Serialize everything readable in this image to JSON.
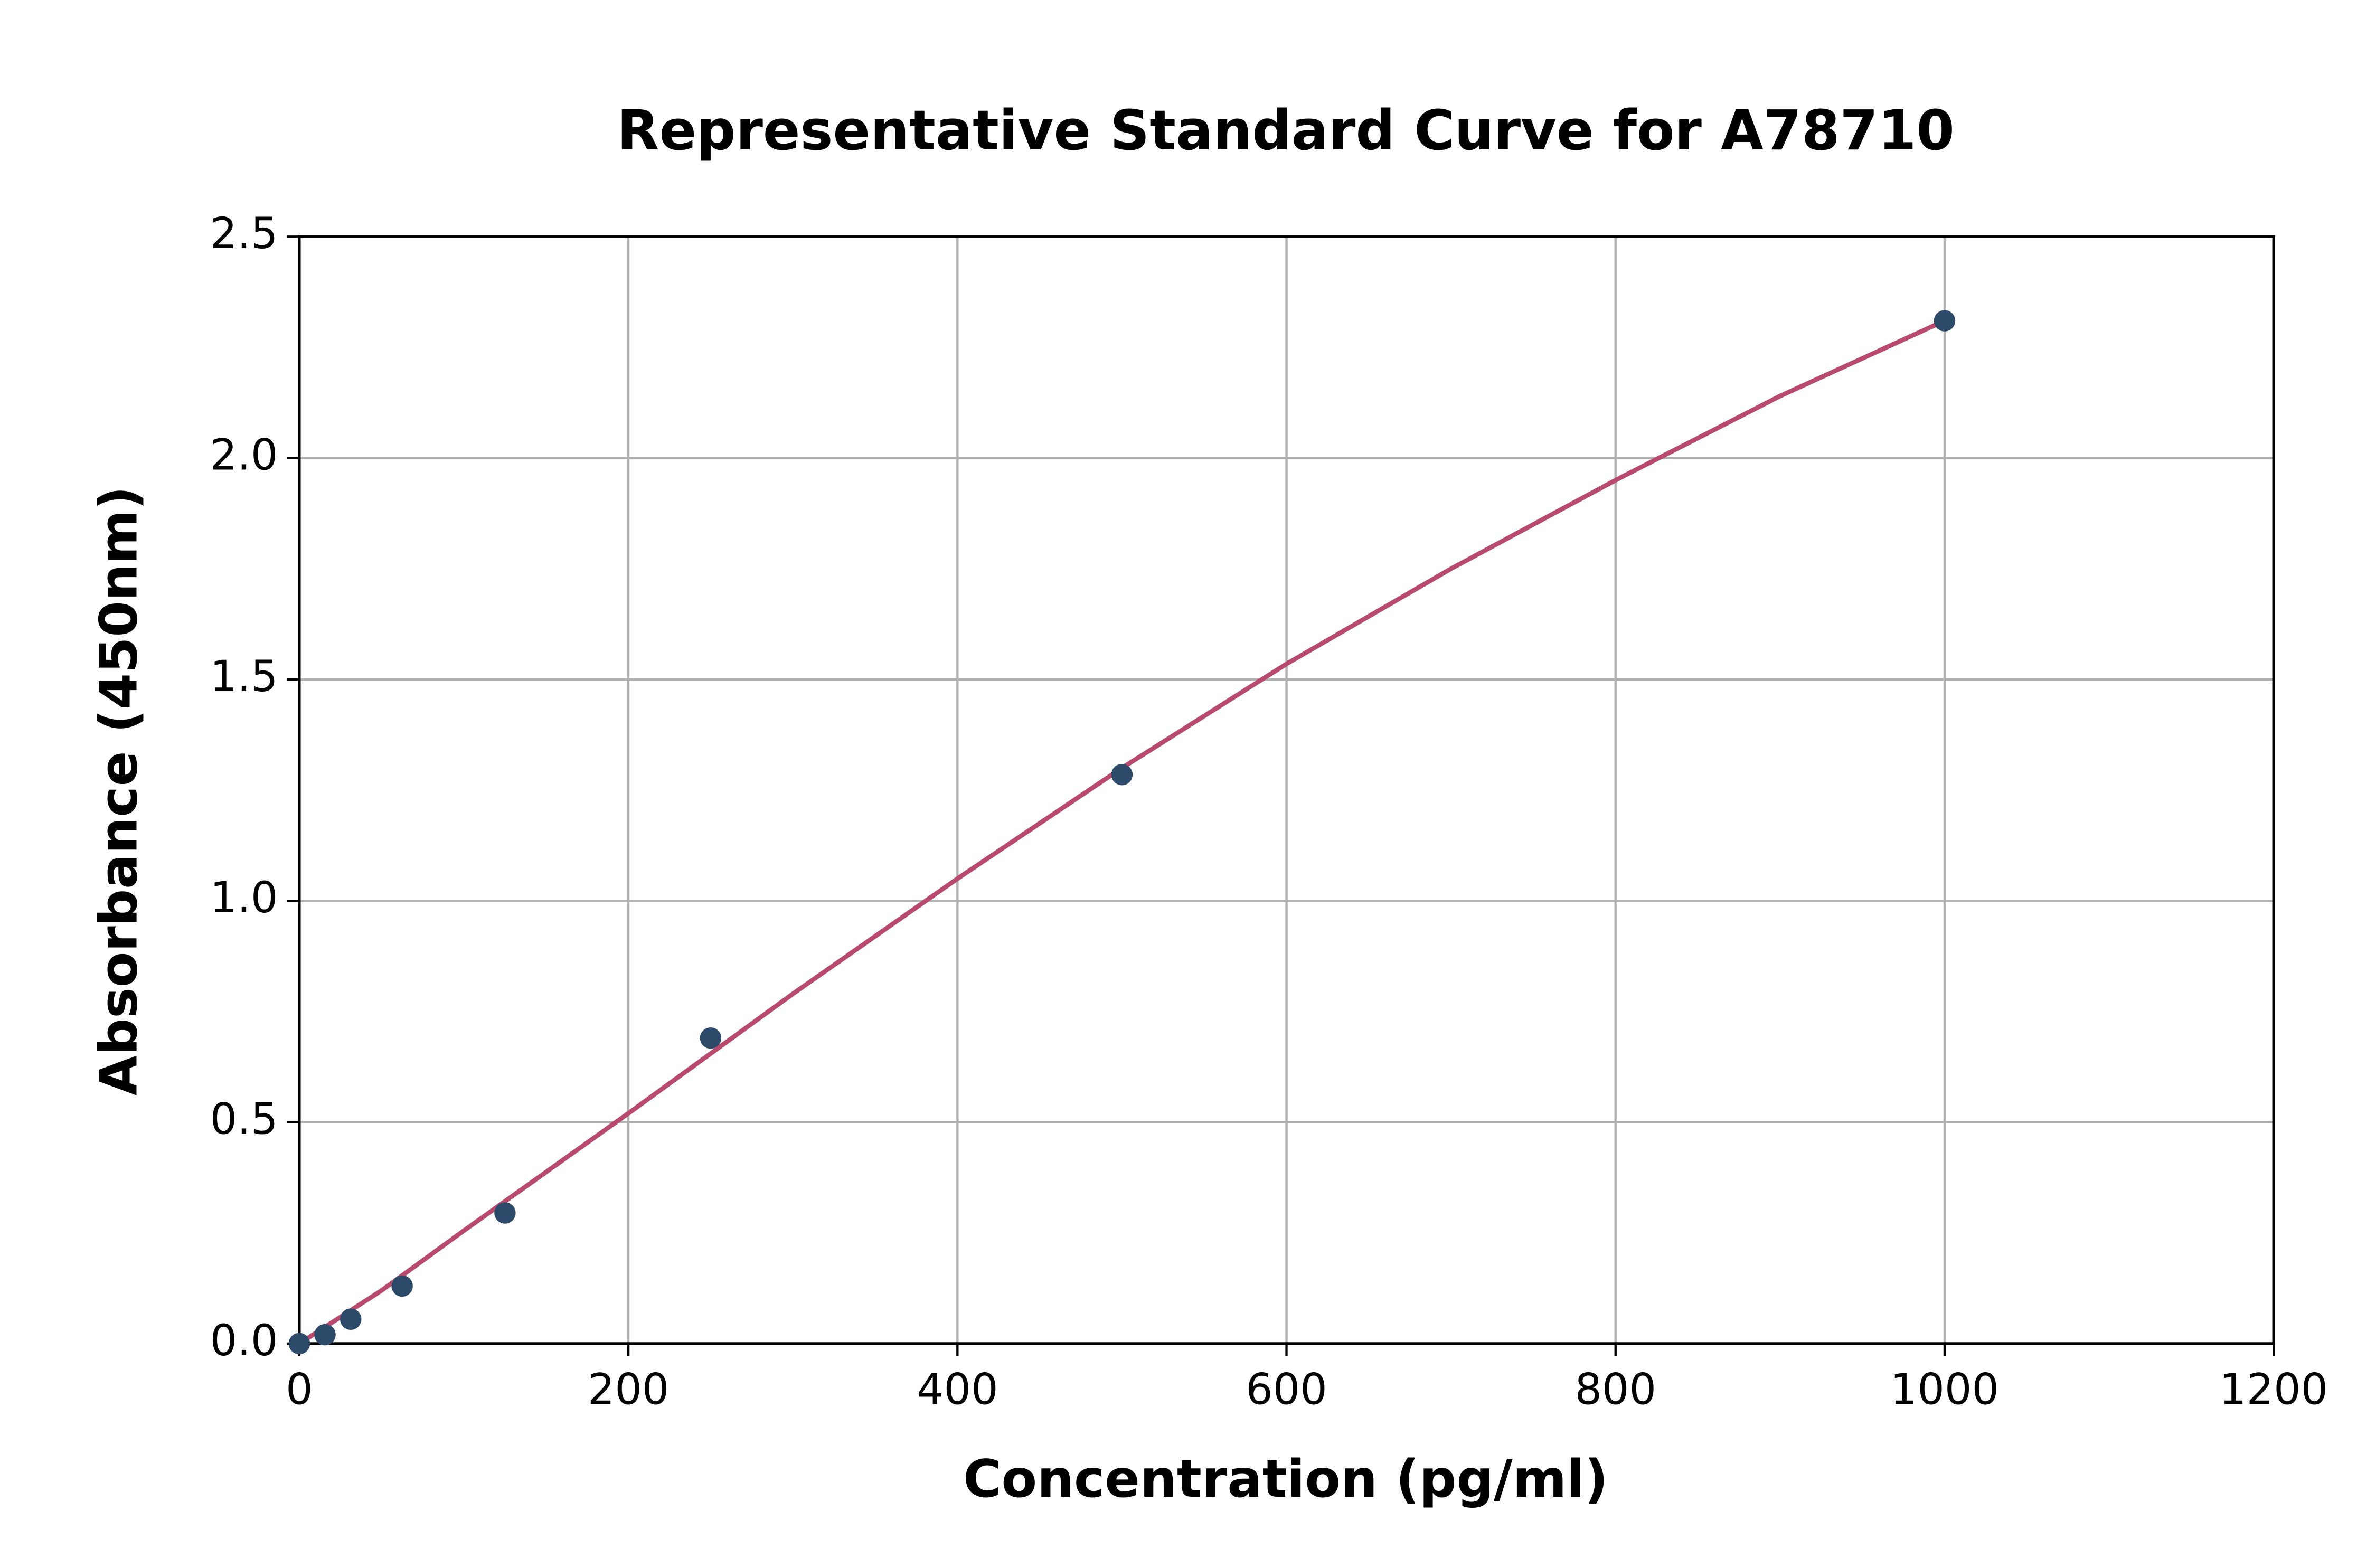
{
  "chart_data": {
    "type": "scatter",
    "title": "Representative Standard Curve for A78710",
    "x_label": "Concentration (pg/ml)",
    "y_label": "Absorbance (450nm)",
    "xlim": [
      0,
      1200
    ],
    "xticks": [
      0,
      200,
      400,
      600,
      800,
      1000,
      1200
    ],
    "ylim": [
      0,
      2.5
    ],
    "yticks": [
      {
        "value": 0,
        "label": "0.0"
      },
      0.5,
      {
        "value": 1,
        "label": "1.0"
      },
      1.5,
      {
        "value": 2,
        "label": "2.0"
      },
      2.5
    ],
    "grid": true,
    "series": [
      {
        "mode": "line",
        "color": "#b84a6e",
        "x": [
          0,
          50,
          100,
          200,
          300,
          400,
          500,
          600,
          700,
          800,
          900,
          1000
        ],
        "values": [
          0,
          0.12,
          0.255,
          0.52,
          0.79,
          1.05,
          1.3,
          1.535,
          1.75,
          1.95,
          2.14,
          2.31
        ]
      },
      {
        "mode": "markers",
        "color": "#2e4a6b",
        "x": [
          0,
          15.6,
          31.25,
          62.5,
          125,
          250,
          500,
          1000
        ],
        "values": [
          0,
          0.02,
          0.055,
          0.13,
          0.295,
          0.69,
          1.285,
          2.31
        ]
      }
    ]
  }
}
